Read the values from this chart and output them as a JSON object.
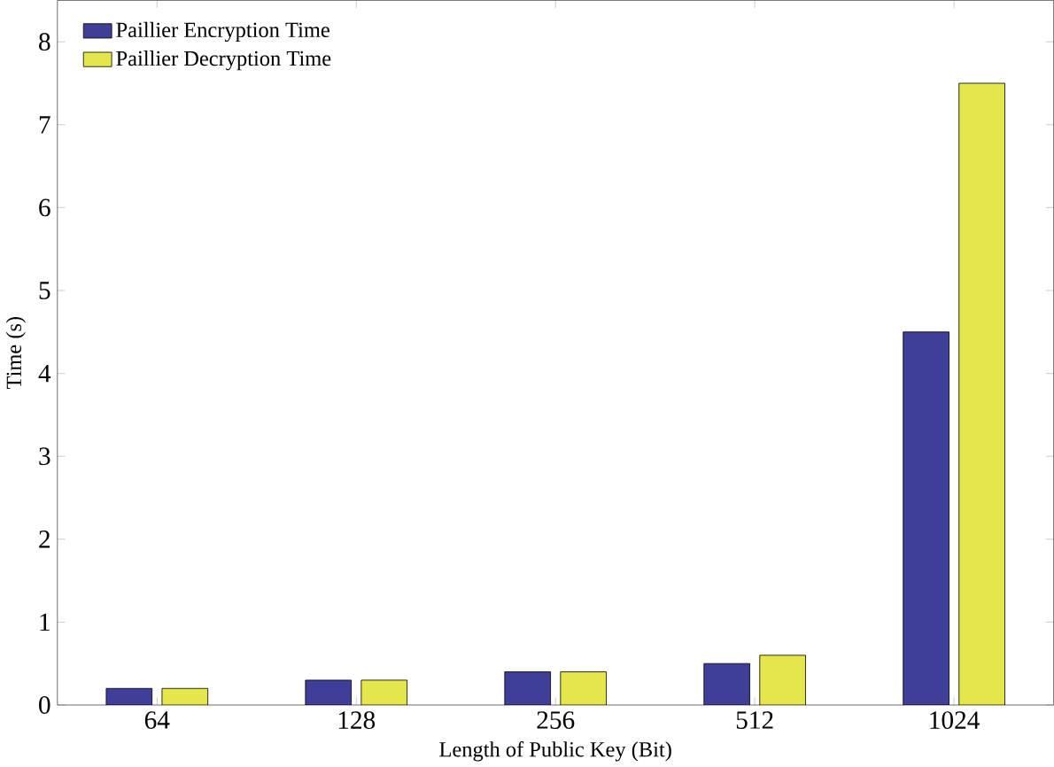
{
  "chart_data": {
    "type": "bar",
    "xlabel": "Length of Public Key (Bit)",
    "ylabel": "Time (s)",
    "categories": [
      "64",
      "128",
      "256",
      "512",
      "1024"
    ],
    "series": [
      {
        "name": "Paillier Encryption Time",
        "color": "#3f3f99",
        "values": [
          0.2,
          0.3,
          0.4,
          0.5,
          4.5
        ]
      },
      {
        "name": "Paillier Decryption Time",
        "color": "#e5e54c",
        "values": [
          0.2,
          0.3,
          0.4,
          0.6,
          7.5
        ]
      }
    ],
    "ylim": [
      0,
      8.5
    ],
    "yticks": [
      0,
      1,
      2,
      3,
      4,
      5,
      6,
      7,
      8
    ],
    "legend": "top left",
    "grid": false
  }
}
